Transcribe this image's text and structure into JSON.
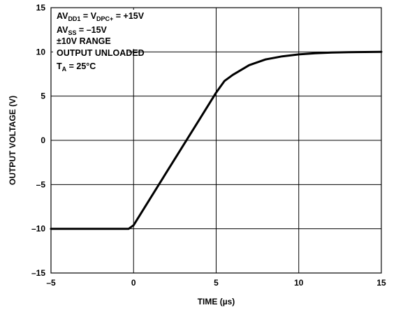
{
  "chart_data": {
    "type": "line",
    "xlabel": "TIME (µs)",
    "ylabel": "OUTPUT VOLTAGE (V)",
    "xlim": [
      -5,
      15
    ],
    "ylim": [
      -15,
      15
    ],
    "x_ticks": [
      "–5",
      "0",
      "5",
      "10",
      "15"
    ],
    "y_ticks": [
      "15",
      "10",
      "5",
      "0",
      "–5",
      "–10",
      "–15"
    ],
    "grid": true,
    "legend": "none",
    "annotations": [
      {
        "parts": [
          {
            "t": "AV"
          },
          {
            "t": "DD1",
            "sub": true
          },
          {
            "t": " = V"
          },
          {
            "t": "DPC+",
            "sub": true
          },
          {
            "t": " = +15V"
          }
        ]
      },
      {
        "parts": [
          {
            "t": "AV"
          },
          {
            "t": "SS",
            "sub": true
          },
          {
            "t": " = –15V"
          }
        ]
      },
      {
        "parts": [
          {
            "t": "±10V RANGE"
          }
        ]
      },
      {
        "parts": [
          {
            "t": "OUTPUT UNLOADED"
          }
        ]
      },
      {
        "parts": [
          {
            "t": "T"
          },
          {
            "t": "A",
            "sub": true
          },
          {
            "t": " = 25°C"
          }
        ]
      }
    ],
    "series": [
      {
        "color": "#000000",
        "x": [
          -5,
          -2,
          -0.3,
          0,
          1,
          2,
          3,
          4,
          5,
          5.5,
          6,
          7,
          8,
          9,
          10,
          11,
          12,
          13,
          14,
          15
        ],
        "y": [
          -10,
          -10,
          -10,
          -9.6,
          -6.6,
          -3.6,
          -0.6,
          2.4,
          5.4,
          6.7,
          7.4,
          8.5,
          9.15,
          9.5,
          9.72,
          9.85,
          9.93,
          9.97,
          9.99,
          10
        ]
      }
    ]
  }
}
